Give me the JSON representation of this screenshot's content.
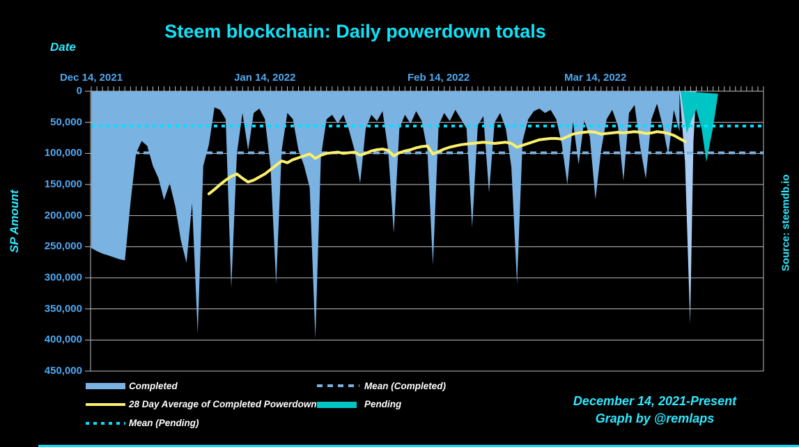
{
  "title": "Steem blockchain: Daily powerdown totals",
  "source_note": "Source: steemdb.io",
  "footer": {
    "line1": "December 14, 2021-Present",
    "line2": "Graph by @remlaps"
  },
  "legend": {
    "items": [
      {
        "label": "Completed"
      },
      {
        "label": "Mean (Completed)"
      },
      {
        "label": "28 Day Average of Completed Powerdowns"
      },
      {
        "label": "Pending"
      },
      {
        "label": "Mean (Pending)"
      }
    ]
  },
  "colors": {
    "background": "#000000",
    "completed": "#7AB2E2",
    "completed_tail": "#A9CDF2",
    "pending": "#00C5C5",
    "avg28": "#FAF06E",
    "mean_completed": "#7AB2E2",
    "mean_pending": "#00E1FF",
    "gridline": "#C0C0C0",
    "axis_tick_labels": "#4FA8F0",
    "cyan_text": "#2FE9FF",
    "title_text": "#0FE2F8",
    "legend_text": "#FFFFFF"
  },
  "chart_data": {
    "type": "area",
    "title": "Steem blockchain: Daily powerdown totals",
    "xlabel": "Date",
    "ylabel": "SP Amount",
    "y_inverted": true,
    "ylim": [
      0,
      450000
    ],
    "days_span": 120,
    "start_date": "Dec 14, 2021",
    "x_ticks": [
      {
        "day": 0,
        "label": "Dec 14, 2021"
      },
      {
        "day": 31,
        "label": "Jan 14, 2022"
      },
      {
        "day": 62,
        "label": "Feb 14, 2022"
      },
      {
        "day": 90,
        "label": "Mar 14, 2022"
      }
    ],
    "y_ticks": [
      {
        "value": 0,
        "label": "0"
      },
      {
        "value": 50000,
        "label": "50,000"
      },
      {
        "value": 100000,
        "label": "100,000"
      },
      {
        "value": 150000,
        "label": "150,000"
      },
      {
        "value": 200000,
        "label": "200,000"
      },
      {
        "value": 250000,
        "label": "250,000"
      },
      {
        "value": 300000,
        "label": "300,000"
      },
      {
        "value": 350000,
        "label": "350,000"
      },
      {
        "value": 400000,
        "label": "400,000"
      },
      {
        "value": 450000,
        "label": "450,000"
      }
    ],
    "mean_completed": 99000,
    "mean_pending": 56000,
    "series": [
      {
        "name": "Completed",
        "start_day": 0,
        "values": [
          252000,
          257000,
          261000,
          264000,
          267000,
          270000,
          272000,
          180000,
          100000,
          80000,
          88000,
          120000,
          140000,
          175000,
          148000,
          185000,
          240000,
          276000,
          180000,
          390000,
          120000,
          86000,
          26000,
          30000,
          45000,
          317000,
          100000,
          35000,
          95000,
          35000,
          28000,
          45000,
          120000,
          310000,
          95000,
          35000,
          45000,
          95000,
          120000,
          155000,
          398000,
          105000,
          45000,
          38000,
          52000,
          38000,
          62000,
          95000,
          148000,
          60000,
          38000,
          48000,
          32000,
          95000,
          228000,
          60000,
          38000,
          52000,
          32000,
          48000,
          95000,
          280000,
          55000,
          35000,
          48000,
          30000,
          45000,
          60000,
          219000,
          55000,
          40000,
          163000,
          50000,
          35000,
          60000,
          122000,
          310000,
          80000,
          45000,
          32000,
          28000,
          35000,
          30000,
          45000,
          85000,
          150000,
          49000,
          118000,
          47000,
          73000,
          174000,
          96000,
          45000,
          30000,
          55000,
          144000,
          35000,
          22000,
          90000,
          141000,
          45000,
          20000,
          55000,
          103000,
          30000,
          65000
        ]
      },
      {
        "name": "Completed (tail)",
        "points": [
          [
            105,
            0
          ],
          [
            106,
            114000
          ],
          [
            106.9,
            375000
          ],
          [
            107.5,
            80000
          ],
          [
            108,
            0
          ]
        ]
      },
      {
        "name": "Pending",
        "points": [
          [
            105.2,
            0
          ],
          [
            106.3,
            68000
          ],
          [
            107.2,
            45000
          ],
          [
            108,
            29000
          ],
          [
            109,
            62000
          ],
          [
            109.8,
            114000
          ],
          [
            111,
            58000
          ],
          [
            111.9,
            4000
          ]
        ]
      },
      {
        "name": "28 Day Average of Completed Powerdowns",
        "start_day": 21,
        "values": [
          165000,
          158000,
          150000,
          143000,
          137000,
          133000,
          140000,
          146000,
          143000,
          138000,
          133000,
          126000,
          119000,
          112000,
          115000,
          110000,
          107000,
          104000,
          101000,
          108000,
          103000,
          100000,
          99000,
          98000,
          100000,
          99000,
          98000,
          103000,
          100000,
          96000,
          94000,
          93000,
          95000,
          104000,
          99000,
          96000,
          94000,
          91000,
          89000,
          88000,
          101000,
          97000,
          93000,
          90000,
          88000,
          86000,
          85000,
          84000,
          83000,
          82000,
          83000,
          84000,
          83000,
          82000,
          84000,
          90000,
          87000,
          84000,
          81000,
          78000,
          77000,
          76000,
          76000,
          77000,
          73000,
          69000,
          67000,
          66000,
          65000,
          66000,
          69000,
          68000,
          67000,
          66000,
          67000,
          66000,
          65000,
          66000,
          68000,
          67000,
          65000,
          66000,
          68000,
          71000,
          76000,
          81000
        ]
      }
    ],
    "legend_position": "bottom"
  }
}
